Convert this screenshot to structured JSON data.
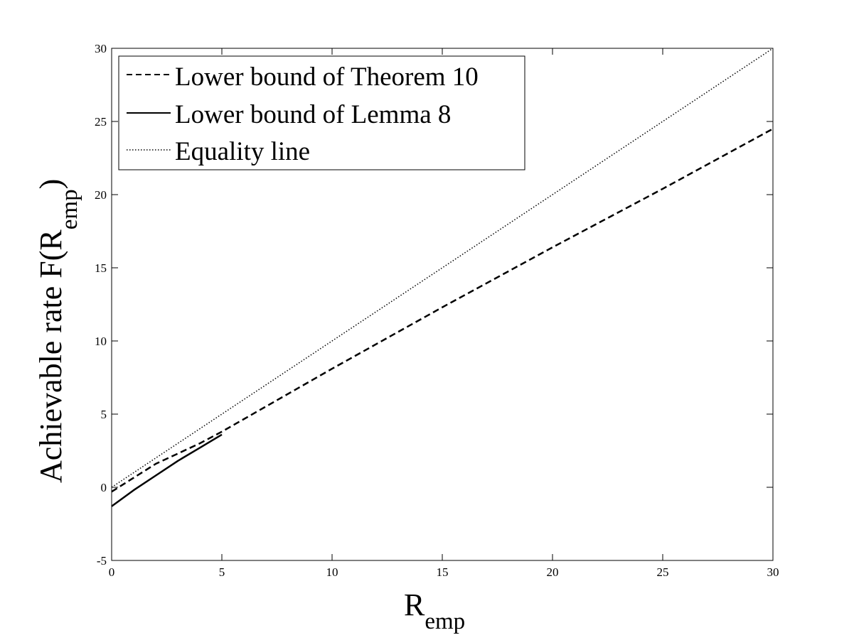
{
  "chart_data": {
    "type": "line",
    "xlabel": {
      "main": "R",
      "sub": "emp"
    },
    "ylabel": {
      "main": "Achievable rate F(R",
      "sub": "emp",
      "end": ")"
    },
    "xlim": [
      0,
      30
    ],
    "ylim": [
      -5,
      30
    ],
    "xticks": [
      0,
      5,
      10,
      15,
      20,
      25,
      30
    ],
    "yticks": [
      -5,
      0,
      5,
      10,
      15,
      20,
      25,
      30
    ],
    "grid": false,
    "legend_position": "top-left",
    "series": [
      {
        "name": "Lower bound of Theorem 10",
        "style": "dashed",
        "color": "#000000",
        "x": [
          0,
          2,
          4,
          5,
          10,
          15,
          20,
          25,
          30
        ],
        "y": [
          -0.3,
          1.6,
          3.0,
          3.8,
          8.1,
          12.3,
          16.4,
          20.4,
          24.5
        ]
      },
      {
        "name": "Lower bound of Lemma 8",
        "style": "solid",
        "color": "#000000",
        "x": [
          0,
          1,
          2,
          3,
          4,
          5
        ],
        "y": [
          -1.3,
          -0.2,
          0.8,
          1.8,
          2.7,
          3.6
        ]
      },
      {
        "name": "Equality line",
        "style": "dotted",
        "color": "#000000",
        "x": [
          0,
          30
        ],
        "y": [
          0,
          30
        ]
      }
    ]
  }
}
